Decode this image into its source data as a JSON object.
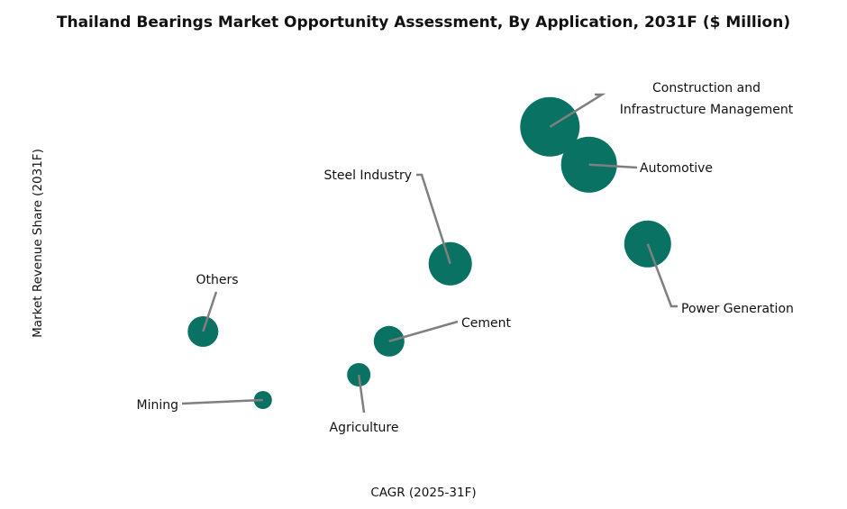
{
  "chart_data": {
    "type": "scatter",
    "subtype": "bubble",
    "title": "Thailand Bearings Market Opportunity Assessment, By Application, 2031F ($ Million)",
    "xlabel": "CAGR (2025-31F)",
    "ylabel": "Market Revenue Share (2031F)",
    "axes_ticks_shown": false,
    "grid": false,
    "legend": "none",
    "units_note": "relative positions; axes have no numeric ticks",
    "bubble_color": "#0a7263",
    "leader_line_color": "#7f7f7f",
    "series": [
      {
        "name": "Construction and Infrastructure Management",
        "label_lines": [
          "Construction and",
          "Infrastructure Management"
        ],
        "x": 7.29,
        "y": 8.98,
        "size": 33
      },
      {
        "name": "Automotive",
        "label_lines": [
          "Automotive"
        ],
        "x": 7.91,
        "y": 7.93,
        "size": 31
      },
      {
        "name": "Power Generation",
        "label_lines": [
          "Power Generation"
        ],
        "x": 8.84,
        "y": 5.73,
        "size": 26
      },
      {
        "name": "Steel Industry",
        "label_lines": [
          "Steel Industry"
        ],
        "x": 5.71,
        "y": 5.18,
        "size": 24
      },
      {
        "name": "Others",
        "label_lines": [
          "Others"
        ],
        "x": 1.79,
        "y": 3.3,
        "size": 17
      },
      {
        "name": "Cement",
        "label_lines": [
          "Cement"
        ],
        "x": 4.74,
        "y": 3.03,
        "size": 17
      },
      {
        "name": "Agriculture",
        "label_lines": [
          "Agriculture"
        ],
        "x": 4.26,
        "y": 2.1,
        "size": 13
      },
      {
        "name": "Mining",
        "label_lines": [
          "Mining"
        ],
        "x": 2.74,
        "y": 1.4,
        "size": 10
      }
    ]
  }
}
